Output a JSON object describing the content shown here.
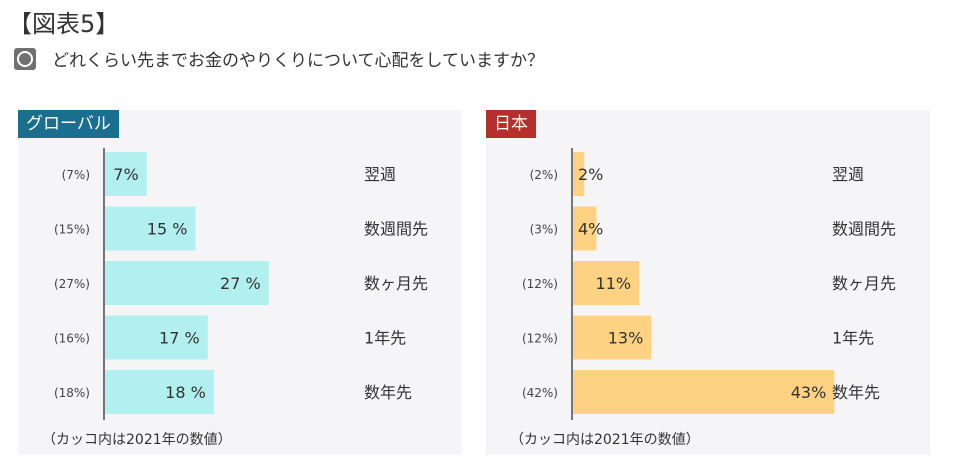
{
  "header": {
    "figure_title": "【図表5】",
    "question": "どれくらい先までお金のやりくりについて心配をしていますか？"
  },
  "colors": {
    "global_header": "#1a6e8e",
    "japan_header": "#b5302c",
    "global_bar": "#b2efef",
    "japan_bar": "#fdd383",
    "axis": "#777777"
  },
  "chart_data": [
    {
      "type": "bar",
      "orientation": "horizontal",
      "title": "グローバル",
      "categories": [
        "翌週",
        "数週間先",
        "数ヶ月先",
        "1年先",
        "数年先"
      ],
      "values": [
        7,
        15,
        27,
        17,
        18
      ],
      "value_labels": [
        "7%",
        "15 %",
        "27 %",
        "17 %",
        "18 %"
      ],
      "prior_labels": [
        "(7%)",
        "(15%)",
        "(27%)",
        "(16%)",
        "(18%)"
      ],
      "prior_values": [
        7,
        15,
        27,
        16,
        18
      ],
      "note": "（カッコ内は2021年の数値）"
    },
    {
      "type": "bar",
      "orientation": "horizontal",
      "title": "日本",
      "categories": [
        "翌週",
        "数週間先",
        "数ヶ月先",
        "1年先",
        "数年先"
      ],
      "values": [
        2,
        4,
        11,
        13,
        43
      ],
      "value_labels": [
        "2%",
        "4%",
        "11%",
        "13%",
        "43%"
      ],
      "prior_labels": [
        "(2%)",
        "(3%)",
        "(12%)",
        "(12%)",
        "(42%)"
      ],
      "prior_values": [
        2,
        3,
        12,
        12,
        42
      ],
      "note": "（カッコ内は2021年の数値）"
    }
  ]
}
